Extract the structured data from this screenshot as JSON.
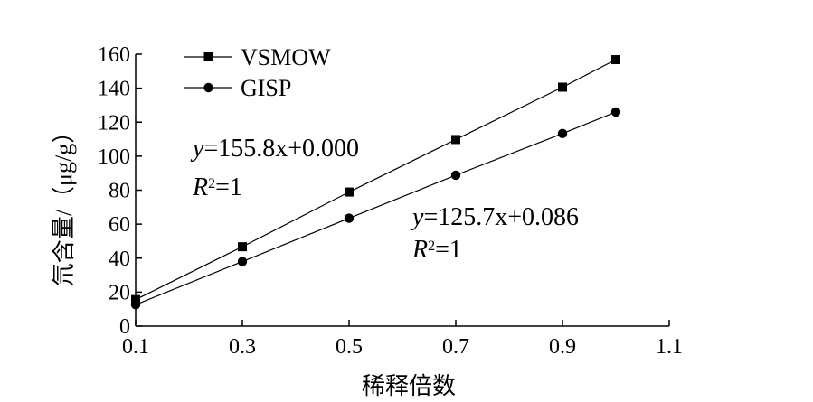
{
  "chart_data": {
    "type": "line",
    "title": "",
    "xlabel": "稀释倍数",
    "ylabel": "氘含量/（μg/g）",
    "xlim": [
      0.1,
      1.1
    ],
    "ylim": [
      0,
      160
    ],
    "xticks": [
      0.1,
      0.3,
      0.5,
      0.7,
      0.9,
      1.1
    ],
    "xtick_labels": [
      "0.1",
      "0.3",
      "0.5",
      "0.7",
      "0.9",
      "1.1"
    ],
    "yticks": [
      0,
      20,
      40,
      60,
      80,
      100,
      120,
      140,
      160
    ],
    "ytick_labels": [
      "0",
      "20",
      "40",
      "60",
      "80",
      "100",
      "120",
      "140",
      "160"
    ],
    "grid": false,
    "legend_position": "top-left",
    "series": [
      {
        "name": "VSMOW",
        "marker": "square",
        "color": "#000000",
        "x": [
          0.1,
          0.3,
          0.5,
          0.7,
          0.9,
          1.0
        ],
        "y": [
          15.6,
          46.7,
          78.9,
          109.8,
          140.6,
          156.8
        ]
      },
      {
        "name": "GISP",
        "marker": "circle",
        "color": "#000000",
        "x": [
          0.1,
          0.3,
          0.5,
          0.7,
          0.9,
          1.0
        ],
        "y": [
          12.6,
          38.0,
          63.5,
          88.8,
          113.3,
          126.0
        ]
      }
    ],
    "annotations": [
      {
        "series": "VSMOW",
        "equation": "155.8x+0.000",
        "r2": "1",
        "position": "upper-left"
      },
      {
        "series": "GISP",
        "equation": "125.7x+0.086",
        "r2": "1",
        "position": "center-right"
      }
    ]
  }
}
